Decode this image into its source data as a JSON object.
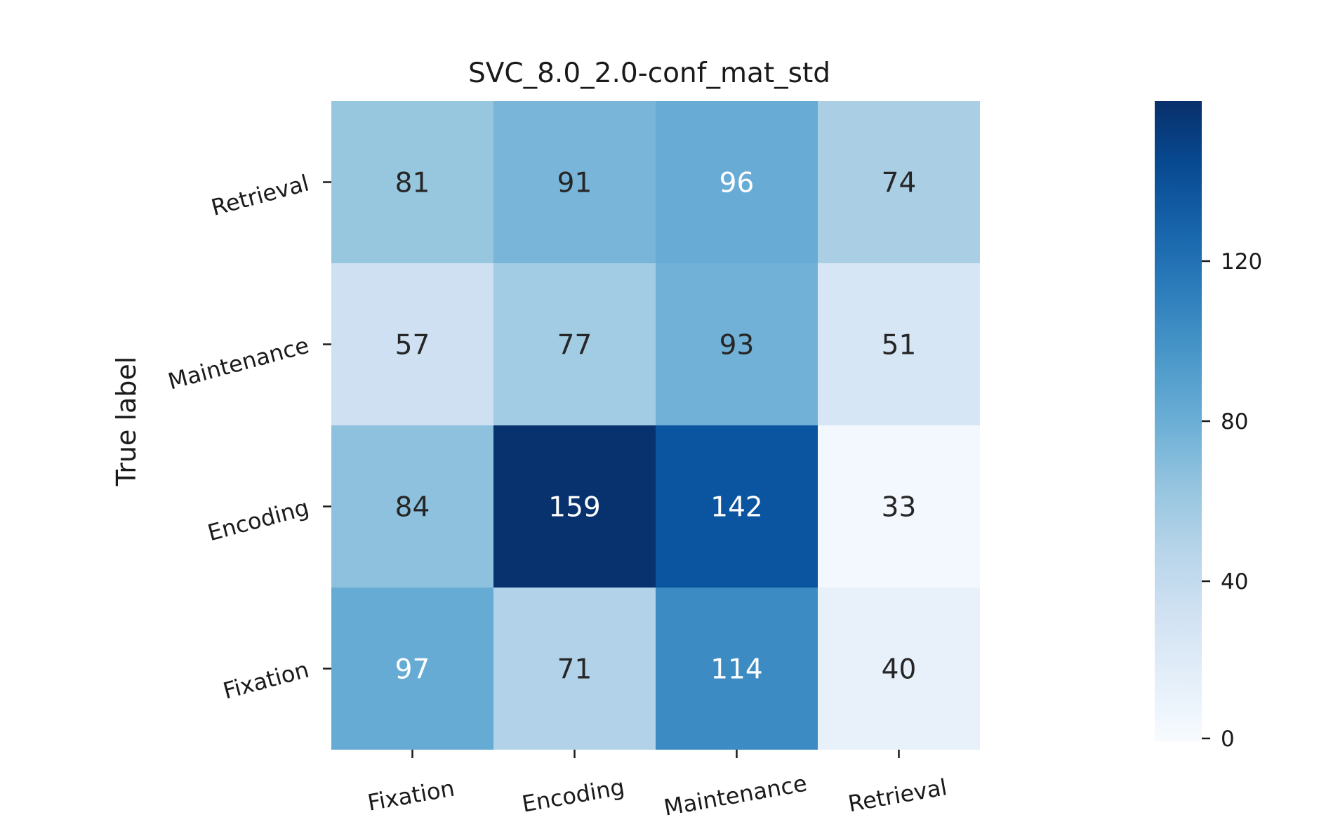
{
  "chart_data": {
    "type": "heatmap",
    "title": "SVC_8.0_2.0-conf_mat_std",
    "ylabel": "True label",
    "xlabel": "",
    "x_categories": [
      "Fixation",
      "Encoding",
      "Maintenance",
      "Retrieval"
    ],
    "y_categories": [
      "Retrieval",
      "Maintenance",
      "Encoding",
      "Fixation"
    ],
    "values": [
      [
        81,
        91,
        96,
        74
      ],
      [
        57,
        77,
        93,
        51
      ],
      [
        84,
        159,
        142,
        33
      ],
      [
        97,
        71,
        114,
        40
      ]
    ],
    "colormap": "Blues",
    "colorbar": {
      "vmin": 30,
      "vmax": 160,
      "ticks": [
        0,
        40,
        80,
        120
      ],
      "tick_labels": [
        "0",
        "40",
        "80",
        "120"
      ]
    },
    "grid": false,
    "colors": {
      "low": "#f7fbff",
      "high": "#08306b",
      "text_dark": "#262626",
      "text_light": "#ffffff"
    }
  }
}
